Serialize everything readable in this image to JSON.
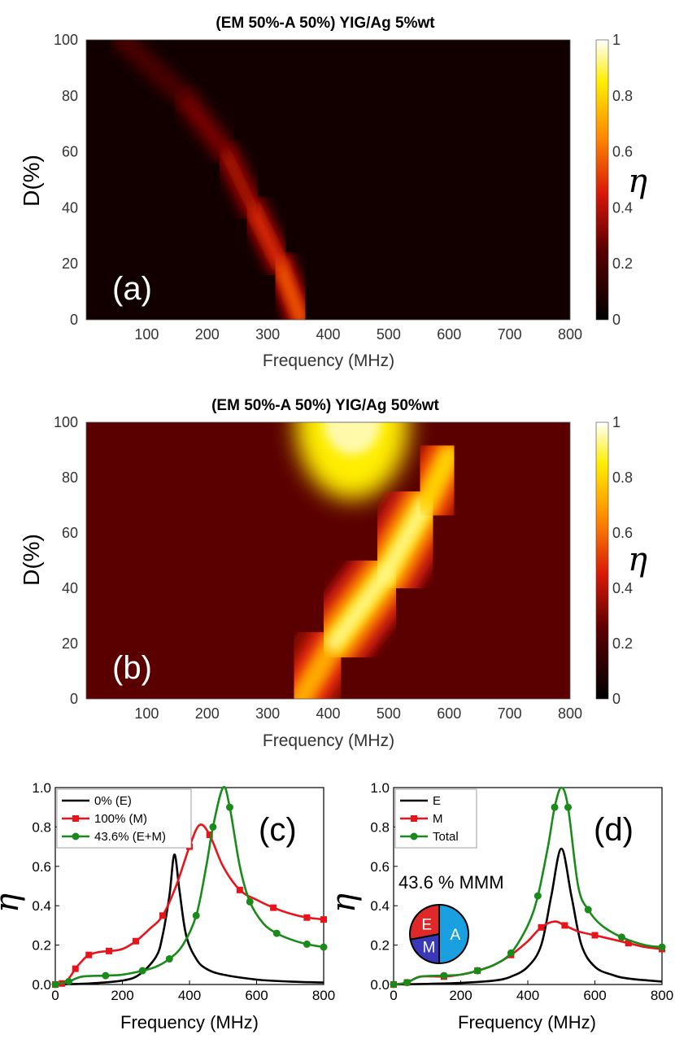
{
  "chart_data": [
    {
      "panel": "(a)",
      "type": "heatmap",
      "title": "(EM 50%-A 50%) YIG/Ag 5%wt",
      "xlabel": "Frequency (MHz)",
      "ylabel": "D(%)",
      "colorbar_label": "η",
      "xlim": [
        0,
        800
      ],
      "ylim": [
        0,
        100
      ],
      "zlim": [
        0,
        1
      ],
      "xticks": [
        "100",
        "200",
        "300",
        "400",
        "500",
        "600",
        "700",
        "800"
      ],
      "yticks": [
        "0",
        "20",
        "40",
        "60",
        "80",
        "100"
      ],
      "colorbar_ticks": [
        "0",
        "0.2",
        "0.4",
        "0.6",
        "0.8",
        "1"
      ],
      "ridge": [
        {
          "D": 0,
          "f": 355,
          "eta": 0.65
        },
        {
          "D": 20,
          "f": 320,
          "eta": 0.55
        },
        {
          "D": 40,
          "f": 275,
          "eta": 0.45
        },
        {
          "D": 60,
          "f": 230,
          "eta": 0.35
        },
        {
          "D": 80,
          "f": 160,
          "eta": 0.28
        },
        {
          "D": 100,
          "f": 60,
          "eta": 0.15
        }
      ],
      "background_eta": 0.05
    },
    {
      "panel": "(b)",
      "type": "heatmap",
      "title": "(EM 50%-A 50%) YIG/Ag 50%wt",
      "xlabel": "Frequency (MHz)",
      "ylabel": "D(%)",
      "colorbar_label": "η",
      "xlim": [
        0,
        800
      ],
      "ylim": [
        0,
        100
      ],
      "zlim": [
        0,
        1
      ],
      "xticks": [
        "100",
        "200",
        "300",
        "400",
        "500",
        "600",
        "700",
        "800"
      ],
      "yticks": [
        "0",
        "20",
        "40",
        "60",
        "80",
        "100"
      ],
      "colorbar_ticks": [
        "0",
        "0.2",
        "0.4",
        "0.6",
        "0.8",
        "1"
      ],
      "ridge": [
        {
          "D": 0,
          "f": 355,
          "eta": 0.6
        },
        {
          "D": 20,
          "f": 410,
          "eta": 0.85
        },
        {
          "D": 45,
          "f": 495,
          "eta": 1.0
        },
        {
          "D": 70,
          "f": 560,
          "eta": 0.85
        },
        {
          "D": 88,
          "f": 600,
          "eta": 0.75
        }
      ],
      "secondary_peak": {
        "D": 100,
        "f": 440,
        "eta": 0.85
      },
      "background_eta": 0.25
    },
    {
      "panel": "(c)",
      "type": "line",
      "xlabel": "Frequency (MHz)",
      "ylabel": "η",
      "xlim": [
        0,
        800
      ],
      "ylim": [
        0,
        1.0
      ],
      "xticks": [
        "0",
        "200",
        "400",
        "600",
        "800"
      ],
      "yticks": [
        "0.0",
        "0.2",
        "0.4",
        "0.6",
        "0.8",
        "1.0"
      ],
      "series": [
        {
          "name": "0% (E)",
          "color": "#000000",
          "marker": "none",
          "x": [
            0,
            100,
            200,
            250,
            300,
            320,
            340,
            355,
            370,
            390,
            420,
            450,
            500,
            600,
            700,
            800
          ],
          "y": [
            0.0,
            0.005,
            0.02,
            0.05,
            0.14,
            0.25,
            0.45,
            0.66,
            0.48,
            0.25,
            0.13,
            0.08,
            0.05,
            0.025,
            0.015,
            0.01
          ]
        },
        {
          "name": "100% (M)",
          "color": "#e8141c",
          "marker": "square",
          "x": [
            0,
            20,
            40,
            60,
            80,
            100,
            130,
            160,
            200,
            240,
            280,
            320,
            360,
            400,
            430,
            460,
            500,
            550,
            600,
            650,
            700,
            750,
            800
          ],
          "y": [
            0.0,
            0.005,
            0.03,
            0.08,
            0.12,
            0.15,
            0.165,
            0.17,
            0.18,
            0.22,
            0.28,
            0.35,
            0.5,
            0.7,
            0.81,
            0.76,
            0.6,
            0.48,
            0.43,
            0.39,
            0.36,
            0.34,
            0.33
          ]
        },
        {
          "name": "43.6% (E+M)",
          "color": "#1a8a1a",
          "marker": "circle",
          "x": [
            0,
            40,
            80,
            150,
            200,
            260,
            300,
            340,
            380,
            420,
            450,
            470,
            500,
            520,
            550,
            580,
            620,
            660,
            700,
            750,
            800
          ],
          "y": [
            0.0,
            0.015,
            0.04,
            0.045,
            0.05,
            0.07,
            0.09,
            0.13,
            0.2,
            0.35,
            0.6,
            0.8,
            1.0,
            0.9,
            0.6,
            0.42,
            0.31,
            0.26,
            0.23,
            0.205,
            0.19
          ]
        }
      ],
      "panel_label": "(c)"
    },
    {
      "panel": "(d)",
      "type": "line",
      "xlabel": "Frequency (MHz)",
      "ylabel": "η",
      "xlim": [
        0,
        800
      ],
      "ylim": [
        0,
        1.0
      ],
      "xticks": [
        "0",
        "200",
        "400",
        "600",
        "800"
      ],
      "yticks": [
        "0.0",
        "0.2",
        "0.4",
        "0.6",
        "0.8",
        "1.0"
      ],
      "series": [
        {
          "name": "E",
          "color": "#000000",
          "marker": "none",
          "x": [
            0,
            100,
            200,
            300,
            350,
            400,
            440,
            470,
            500,
            530,
            560,
            600,
            650,
            700,
            800
          ],
          "y": [
            0.0,
            0.003,
            0.008,
            0.02,
            0.04,
            0.09,
            0.2,
            0.45,
            0.69,
            0.45,
            0.2,
            0.09,
            0.05,
            0.03,
            0.015
          ]
        },
        {
          "name": "M",
          "color": "#e8141c",
          "marker": "square",
          "x": [
            0,
            40,
            80,
            150,
            200,
            250,
            300,
            350,
            400,
            440,
            480,
            510,
            550,
            600,
            650,
            700,
            750,
            800
          ],
          "y": [
            0.0,
            0.01,
            0.04,
            0.04,
            0.05,
            0.07,
            0.1,
            0.15,
            0.22,
            0.29,
            0.32,
            0.3,
            0.27,
            0.25,
            0.23,
            0.21,
            0.19,
            0.18
          ]
        },
        {
          "name": "Total",
          "color": "#1a8a1a",
          "marker": "circle",
          "x": [
            0,
            40,
            80,
            150,
            200,
            250,
            300,
            350,
            400,
            430,
            460,
            480,
            500,
            520,
            550,
            580,
            620,
            680,
            750,
            800
          ],
          "y": [
            0.0,
            0.01,
            0.04,
            0.045,
            0.05,
            0.07,
            0.1,
            0.16,
            0.3,
            0.45,
            0.7,
            0.9,
            1.0,
            0.9,
            0.5,
            0.38,
            0.3,
            0.24,
            0.2,
            0.19
          ]
        }
      ],
      "annotation": "43.6 % MMM",
      "pie": [
        {
          "label": "A",
          "value": 50,
          "color": "#1aa0e0"
        },
        {
          "label": "M",
          "value": 22,
          "color": "#3838b8"
        },
        {
          "label": "E",
          "value": 28,
          "color": "#e02828"
        }
      ],
      "panel_label": "(d)"
    }
  ]
}
